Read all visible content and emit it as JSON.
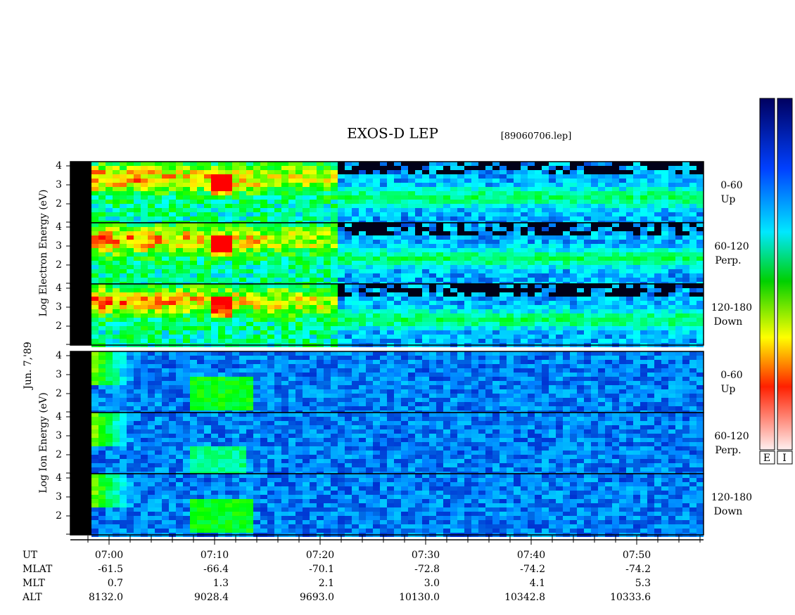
{
  "header": {
    "title": "EXOS-D LEP",
    "file": "[89060706.lep]",
    "date": "Jun. 7,'89"
  },
  "species": [
    {
      "axis_label": "Log Electron Energy (eV)"
    },
    {
      "axis_label": "Log Ion Energy (eV)"
    }
  ],
  "energy_ticks": [
    "4",
    "3",
    "2"
  ],
  "pitch_panels": [
    {
      "range": "0-60",
      "direction": "Up"
    },
    {
      "range": "60-120",
      "direction": "Perp."
    },
    {
      "range": "120-180",
      "direction": "Down"
    }
  ],
  "colorbars": [
    "E",
    "I"
  ],
  "ephemeris": {
    "rows": [
      {
        "label": "UT",
        "values": [
          "07:00",
          "07:10",
          "07:20",
          "07:30",
          "07:40",
          "07:50"
        ]
      },
      {
        "label": "MLAT",
        "values": [
          "-61.5",
          "-66.4",
          "-70.1",
          "-72.8",
          "-74.2",
          "-74.2"
        ]
      },
      {
        "label": "MLT",
        "values": [
          "0.7",
          "1.3",
          "2.1",
          "3.0",
          "4.1",
          "5.3"
        ]
      },
      {
        "label": "ALT",
        "values": [
          "8132.0",
          "9028.4",
          "9693.0",
          "10130.0",
          "10342.8",
          "10333.6"
        ]
      }
    ]
  }
}
